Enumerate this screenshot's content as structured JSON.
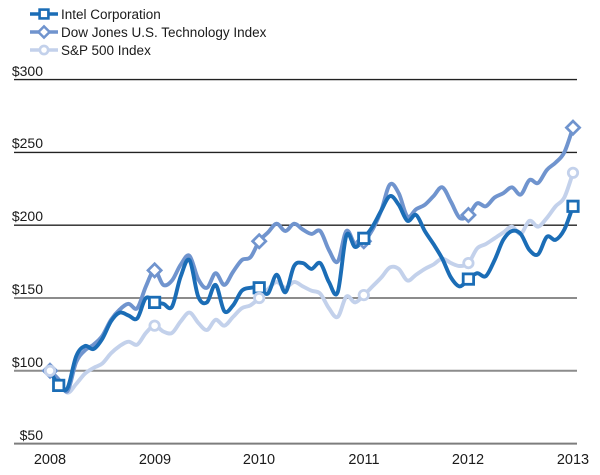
{
  "chart_data": {
    "type": "line",
    "title": "",
    "legend_position": "top-left",
    "grid": "horizontal",
    "x_axis": {
      "tick_labels": [
        "2008",
        "2009",
        "2010",
        "2011",
        "2012",
        "2013"
      ]
    },
    "y_axis": {
      "tick_labels": [
        "$300",
        "$250",
        "$200",
        "$150",
        "$100",
        "$50"
      ],
      "ticks": [
        300,
        250,
        200,
        150,
        100,
        50
      ],
      "range": [
        50,
        300
      ]
    },
    "series": [
      {
        "name": "Intel Corporation",
        "color": "#1b6db6",
        "marker": "square",
        "yearly_values": [
          100,
          147,
          157,
          191,
          163,
          213
        ],
        "monthly_values": [
          100,
          90,
          88,
          110,
          117,
          115,
          122,
          134,
          140,
          138,
          136,
          150,
          147,
          146,
          144,
          165,
          176,
          151,
          147,
          159,
          141,
          145,
          155,
          157,
          157,
          153,
          166,
          154,
          172,
          174,
          170,
          174,
          161,
          154,
          193,
          185,
          191,
          199,
          210,
          220,
          214,
          203,
          207,
          196,
          187,
          177,
          164,
          158,
          163,
          167,
          165,
          176,
          190,
          196,
          194,
          183,
          180,
          192,
          190,
          197,
          213
        ]
      },
      {
        "name": "Dow Jones U.S. Technology Index",
        "color": "#7094ce",
        "marker": "diamond",
        "yearly_values": [
          100,
          169,
          189,
          189,
          207,
          267
        ],
        "monthly_values": [
          100,
          94,
          86,
          106,
          114,
          118,
          124,
          135,
          142,
          146,
          143,
          158,
          169,
          159,
          162,
          173,
          179,
          163,
          157,
          167,
          159,
          168,
          176,
          178,
          189,
          195,
          201,
          196,
          201,
          197,
          194,
          196,
          183,
          175,
          196,
          187,
          189,
          197,
          210,
          228,
          222,
          206,
          211,
          214,
          220,
          226,
          216,
          205,
          207,
          215,
          213,
          219,
          222,
          226,
          221,
          231,
          229,
          238,
          243,
          250,
          267
        ]
      },
      {
        "name": "S&P 500 Index",
        "color": "#c3d1eb",
        "marker": "circle",
        "yearly_values": [
          100,
          131,
          150,
          152,
          174,
          236
        ],
        "monthly_values": [
          100,
          93,
          85,
          91,
          98,
          102,
          105,
          112,
          117,
          120,
          118,
          126,
          131,
          127,
          126,
          134,
          140,
          133,
          128,
          135,
          131,
          137,
          143,
          145,
          150,
          156,
          161,
          157,
          161,
          158,
          155,
          153,
          143,
          137,
          151,
          147,
          152,
          158,
          164,
          171,
          170,
          162,
          166,
          170,
          173,
          177,
          174,
          172,
          174,
          184,
          187,
          191,
          195,
          199,
          194,
          203,
          199,
          205,
          213,
          219,
          236
        ]
      }
    ]
  },
  "colors": {
    "text": "#1a1a1a",
    "grid_dark": "#222222",
    "grid_light": "#8c8c8c",
    "grid_axis": "#7d7d7d",
    "background": "#ffffff"
  }
}
